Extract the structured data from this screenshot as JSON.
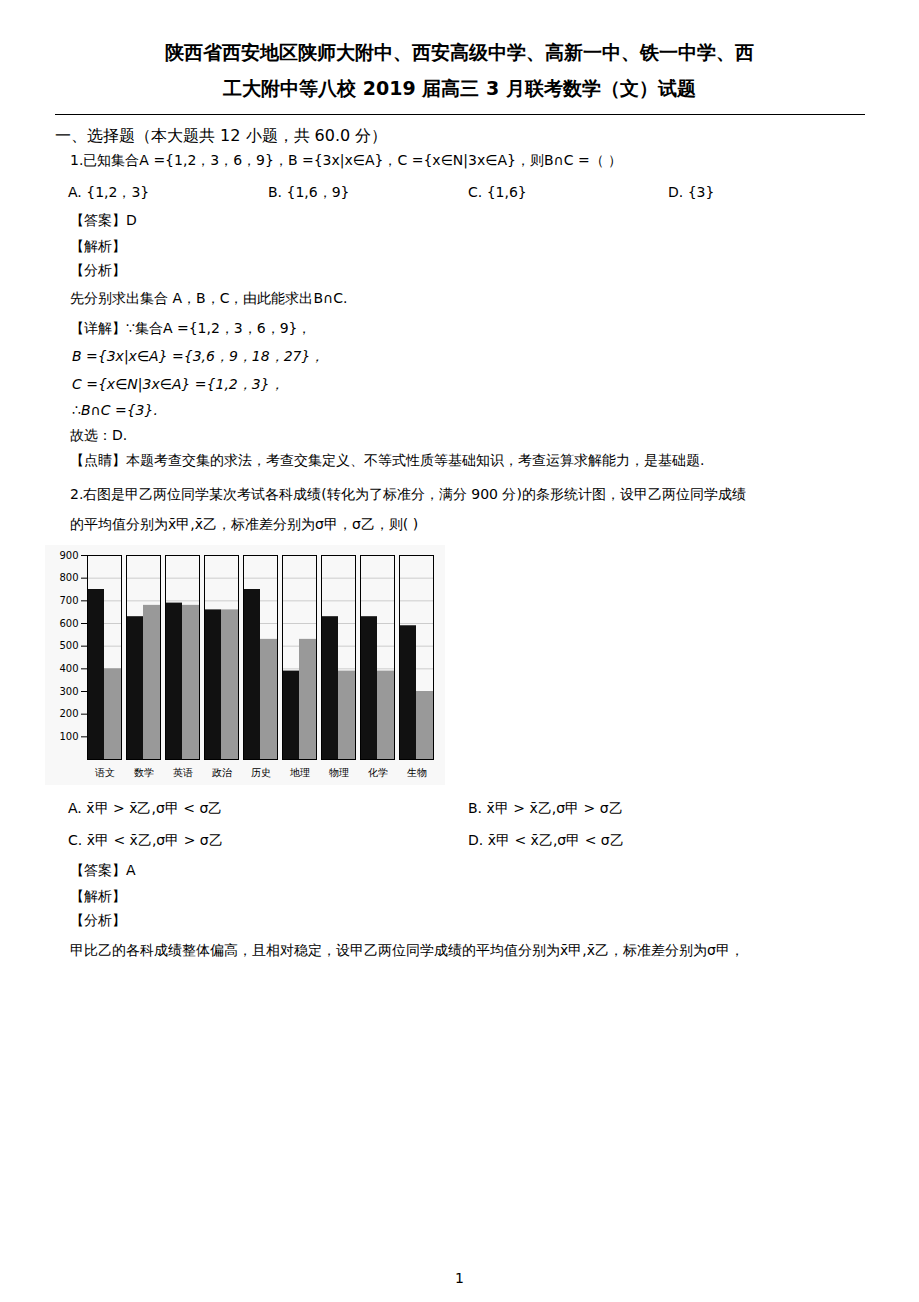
{
  "chart_data": {
    "type": "bar",
    "title": [
      "陕西省西安地区陕师大附中、西安高级中学、高新一中、铁一中学、西",
      "工大附中等八校 2019 届高三 3 月联考数学（文）试题"
    ],
    "annotations": [
      "一、选择题（本大题共 12 小题，共 60.0 分）",
      "1.已知集合A ={1,2，3，6，9}，B ={3x|x∈A}，C ={x∈N|3x∈A}，则B∩C =（    ）",
      "A. {1,2，3}",
      "B. {1,6，9}",
      "C. {1,6}",
      "D. {3}",
      "【答案】D",
      "【解析】",
      "【分析】",
      "先分别求出集合 A，B，C，由此能求出B∩C.",
      "【详解】∵集合A ={1,2，3，6，9}，",
      "B ={3x|x∈A} ={3,6，9，18，27}，",
      "C ={x∈N|3x∈A} ={1,2，3}，",
      "∴B∩C ={3}.",
      "故选：D.",
      "【点睛】本题考查交集的求法，考查交集定义、不等式性质等基础知识，考查运算求解能力，是基础题.",
      "2.右图是甲乙两位同学某次考试各科成绩(转化为了标准分，满分 900 分)的条形统计图，设甲乙两位同学成绩",
      "的平均值分别为x̄甲,x̄乙，标准差分别为σ甲，σ乙，则(      )",
      "A.  x̄甲 > x̄乙,σ甲 < σ乙",
      "B.  x̄甲 > x̄乙,σ甲 > σ乙",
      "C.  x̄甲 < x̄乙,σ甲 > σ乙",
      "D.  x̄甲 < x̄乙,σ甲 < σ乙",
      "【答案】A",
      "【解析】",
      "【分析】",
      "甲比乙的各科成绩整体偏高，且相对稳定，设甲乙两位同学成绩的平均值分别为x̄甲,x̄乙，标准差分别为σ甲，",
      "1"
    ],
    "categories": [
      "语文",
      "数学",
      "英语",
      "政治",
      "历史",
      "地理",
      "物理",
      "化学",
      "生物"
    ],
    "series": [
      {
        "color": "#111111",
        "values": [
          750,
          630,
          690,
          660,
          750,
          390,
          630,
          630,
          590
        ]
      },
      {
        "color": "#999999",
        "values": [
          400,
          680,
          680,
          660,
          530,
          530,
          390,
          390,
          300
        ]
      }
    ],
    "ylim": [
      0,
      900
    ],
    "yticks": [
      100,
      200,
      300,
      400,
      500,
      600,
      700,
      800,
      900
    ],
    "grid": true
  }
}
